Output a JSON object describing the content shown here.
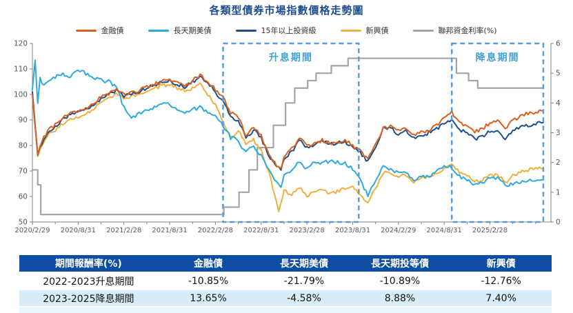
{
  "title": "各類型債券市場指數價格走勢圖",
  "legend": [
    {
      "label": "金融債",
      "color": "#D95F1E"
    },
    {
      "label": "長天期美債",
      "color": "#2CA9E1"
    },
    {
      "label": "15年以上投資級",
      "color": "#1A4F8C"
    },
    {
      "label": "新興債",
      "color": "#F0AF3C"
    },
    {
      "label": "聯邦資金利率(%)",
      "color": "#A3A3A3"
    }
  ],
  "chart_data": {
    "type": "line",
    "title": "各類型債券市場指數價格走勢圖",
    "x_unit": "months since 2020/2/29",
    "x_domain": [
      0,
      68
    ],
    "left_axis": {
      "min": 50,
      "max": 120,
      "step": 10
    },
    "right_axis": {
      "min": 0,
      "max": 6,
      "step": 1,
      "for_series": "聯邦資金利率(%)"
    },
    "x_ticks": {
      "major_positions": [
        0,
        6,
        12,
        18,
        24,
        30,
        36,
        42,
        48,
        54,
        60
      ],
      "major_labels": [
        "2020/2/29",
        "2020/8/31",
        "2021/2/28",
        "2021/8/31",
        "2022/2/28",
        "2022/8/31",
        "2023/2/28",
        "2023/8/31",
        "2024/2/29",
        "2024/8/31",
        "2025/2/28"
      ],
      "minor_interval": 3
    },
    "annotations": [
      {
        "label": "升息期間",
        "x_from": 25,
        "x_to": 42.8,
        "label_x": 33.9
      },
      {
        "label": "降息期間",
        "x_from": 55,
        "x_to": 67,
        "label_x": 61
      }
    ],
    "series": [
      {
        "name": "聯邦資金利率(%)",
        "color": "#A3A3A3",
        "axis": "right",
        "step": true,
        "width": 2.2,
        "x": [
          0,
          0.7,
          1.1,
          25.1,
          27.1,
          28.4,
          29.5,
          31.6,
          33.2,
          34.4,
          36.1,
          37.2,
          39.2,
          41.4,
          55.6,
          57.2,
          58.4,
          67
        ],
        "y": [
          1.75,
          1.25,
          0.25,
          0.5,
          1.0,
          1.75,
          2.5,
          3.25,
          4.0,
          4.5,
          4.75,
          5.0,
          5.25,
          5.5,
          5.0,
          4.75,
          4.5,
          4.5
        ]
      },
      {
        "name": "新興債",
        "color": "#F0AF3C",
        "axis": "left",
        "step": false,
        "width": 2,
        "x": [
          0,
          0.7,
          1,
          2,
          3,
          4,
          5,
          6,
          7,
          8,
          9,
          10,
          11,
          12,
          13,
          14,
          15,
          16,
          17,
          18,
          19,
          20,
          21,
          22,
          23,
          24,
          25,
          26,
          27,
          28,
          29,
          30,
          31,
          32.3,
          33,
          34,
          35,
          36,
          37,
          38,
          39,
          40,
          41,
          42,
          43,
          44,
          45,
          46,
          47,
          48,
          49,
          50,
          51,
          52,
          53,
          54,
          55,
          56,
          57,
          58,
          59,
          60,
          61,
          62,
          63,
          64,
          65,
          66,
          67
        ],
        "y": [
          100,
          75,
          79,
          84,
          86,
          88.5,
          90.5,
          91.5,
          92.5,
          94,
          97,
          98.5,
          100,
          98.5,
          99,
          100,
          101.5,
          102.5,
          103.5,
          104,
          102.5,
          101.5,
          102.5,
          104,
          100,
          96,
          89,
          83,
          86,
          80,
          82,
          78,
          70,
          54,
          62,
          61,
          63.5,
          60.5,
          61.5,
          62.5,
          61,
          62,
          63,
          63.5,
          61,
          57.5,
          63,
          69.5,
          69.5,
          67.5,
          68.5,
          66,
          67,
          68,
          69.5,
          71,
          72.5,
          69.5,
          68,
          66,
          66.5,
          68,
          68.5,
          65.5,
          68,
          69.5,
          70.5,
          71,
          71
        ]
      },
      {
        "name": "長天期美債",
        "color": "#2CA9E1",
        "axis": "left",
        "step": false,
        "width": 2,
        "x": [
          0,
          0.35,
          0.7,
          1,
          1.5,
          2,
          3,
          4,
          5,
          6,
          7,
          8,
          9,
          10,
          11,
          12,
          13,
          14,
          15,
          16,
          17,
          18,
          19,
          20,
          21,
          22,
          23,
          24,
          25,
          26,
          27,
          28,
          29,
          30,
          31,
          32,
          32.6,
          33,
          34,
          35,
          36,
          37,
          38,
          39,
          40,
          41,
          42,
          43,
          44,
          45,
          46,
          47,
          48,
          49,
          50,
          51,
          52,
          53,
          54,
          55,
          56,
          57,
          58,
          59,
          60,
          61,
          62,
          63,
          64,
          65,
          66,
          67
        ],
        "y": [
          102,
          113,
          97,
          107,
          103,
          105,
          107,
          108,
          106.5,
          110,
          108,
          107,
          105.5,
          105,
          103,
          95,
          91,
          92.5,
          93.5,
          95,
          96.5,
          96,
          94,
          92.5,
          94,
          95,
          93,
          91,
          88,
          83,
          82,
          77,
          80,
          76,
          70,
          66,
          64,
          68,
          70,
          74,
          70.5,
          73.5,
          73,
          74,
          73.5,
          73,
          71,
          66.5,
          60.5,
          66,
          71.5,
          71,
          69,
          70,
          66.5,
          67.5,
          68,
          70,
          72,
          71.5,
          68,
          66.5,
          64.5,
          65.5,
          67.5,
          67,
          64.5,
          65,
          65.5,
          66,
          66.5,
          66.5
        ]
      },
      {
        "name": "15年以上投資級",
        "color": "#1A4F8C",
        "axis": "left",
        "step": false,
        "width": 2,
        "x": [
          0,
          0.7,
          1,
          2,
          3,
          4,
          5,
          6,
          7,
          8,
          9,
          10,
          11,
          12,
          13,
          14,
          15,
          16,
          17,
          18,
          19,
          20,
          21,
          22,
          23,
          24,
          25,
          26,
          27,
          28,
          29,
          30,
          31,
          32,
          32.6,
          33,
          34,
          35,
          36,
          37,
          38,
          39,
          40,
          41,
          42,
          43,
          44,
          45,
          46,
          47,
          48,
          49,
          50,
          51,
          52,
          53,
          54,
          55,
          56,
          57,
          58,
          59,
          60,
          61,
          62,
          63,
          64,
          65,
          66,
          67
        ],
        "y": [
          101,
          75.5,
          79,
          85,
          87,
          90,
          92,
          93,
          94,
          95.5,
          98,
          100,
          101.5,
          99.5,
          100,
          101,
          102.5,
          103.5,
          105,
          105.5,
          104,
          103,
          105,
          107,
          104.5,
          101,
          97.5,
          91.5,
          89.5,
          83,
          86,
          83,
          76,
          71.5,
          71,
          75,
          77.5,
          82,
          79,
          80.5,
          81.5,
          80.5,
          81,
          81.5,
          79.5,
          77,
          73.5,
          79,
          86.5,
          86.5,
          84.5,
          85.5,
          83,
          84,
          85,
          86.5,
          88.5,
          89.5,
          86.5,
          84.5,
          82.5,
          83.5,
          85.5,
          86,
          82.5,
          86,
          87.5,
          88,
          88.5,
          89
        ]
      },
      {
        "name": "金融債",
        "color": "#D95F1E",
        "axis": "left",
        "step": false,
        "width": 2,
        "x": [
          0,
          0.7,
          1,
          2,
          3,
          4,
          5,
          6,
          7,
          8,
          9,
          10,
          11,
          12,
          13,
          14,
          15,
          16,
          17,
          18,
          19,
          20,
          21,
          22,
          23,
          24,
          25,
          26,
          27,
          28,
          29,
          30,
          31,
          32,
          32.6,
          33,
          34,
          35,
          36,
          37,
          38,
          39,
          40,
          41,
          42,
          43,
          44,
          45,
          46,
          47,
          48,
          49,
          50,
          51,
          52,
          53,
          54,
          55,
          56,
          57,
          58,
          59,
          60,
          61,
          62,
          63,
          64,
          65,
          66,
          67
        ],
        "y": [
          100,
          76.5,
          80,
          86,
          88,
          91,
          93,
          93.5,
          94,
          96,
          99,
          100.5,
          102,
          100,
          100.5,
          101.5,
          103,
          104,
          105,
          106,
          104.5,
          103.5,
          105.5,
          107.5,
          105,
          102,
          99,
          93,
          91,
          84,
          87,
          84,
          77,
          72,
          71.5,
          76,
          78.5,
          83,
          80,
          81,
          82,
          81,
          81.5,
          82,
          80,
          78,
          74.5,
          80,
          87,
          87.5,
          85.5,
          86.5,
          84,
          85,
          86,
          88,
          91,
          93,
          89,
          87.5,
          85.5,
          86.5,
          89,
          90,
          86.5,
          90,
          91.5,
          92.5,
          93,
          93.5
        ]
      }
    ],
    "style": {
      "spine_color": "#808080",
      "axis_text_color": "#595959",
      "annotation_box_color": "#5B9BD5",
      "annotation_text_color": "#41A0D8"
    }
  },
  "table": {
    "headers": [
      "期間報酬率(%)",
      "金融債",
      "長天期美債",
      "長天期投等債",
      "新興債"
    ],
    "rows": [
      [
        "2022-2023升息期間",
        "-10.85%",
        "-21.79%",
        "-10.89%",
        "-12.76%"
      ],
      [
        "2023-2025降息期間",
        "13.65%",
        "-4.58%",
        "8.88%",
        "7.40%"
      ]
    ]
  }
}
